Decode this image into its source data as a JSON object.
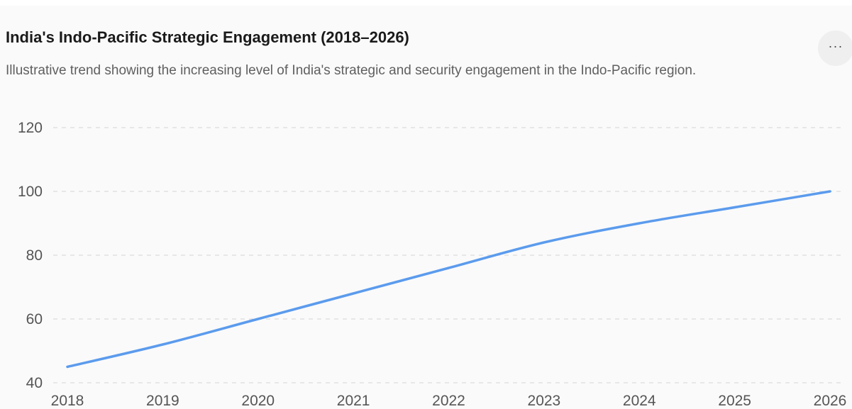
{
  "header": {
    "title": "India's Indo-Pacific Strategic Engagement (2018–2026)",
    "subtitle": "Illustrative trend showing the increasing level of India's strategic and security engagement in the Indo-Pacific region.",
    "menu_label": "···"
  },
  "colors": {
    "line": "#5b9bed",
    "grid": "#dcdcdc",
    "tick_text": "#555555"
  },
  "chart_data": {
    "type": "line",
    "title": "India's Indo-Pacific Strategic Engagement (2018–2026)",
    "subtitle": "Illustrative trend showing the increasing level of India's strategic and security engagement in the Indo-Pacific region.",
    "xlabel": "",
    "ylabel": "",
    "x": [
      2018,
      2019,
      2020,
      2021,
      2022,
      2023,
      2024,
      2025,
      2026
    ],
    "series": [
      {
        "values": [
          45,
          52,
          60,
          68,
          76,
          84,
          90,
          95,
          100
        ]
      }
    ],
    "xticks": [
      "2018",
      "2019",
      "2020",
      "2021",
      "2022",
      "2023",
      "2024",
      "2025",
      "2026"
    ],
    "yticks": [
      40,
      60,
      80,
      100,
      120
    ],
    "ylim": [
      40,
      120
    ],
    "xlim": [
      2018,
      2026
    ],
    "grid": "horizontal dashed",
    "legend": "none"
  }
}
